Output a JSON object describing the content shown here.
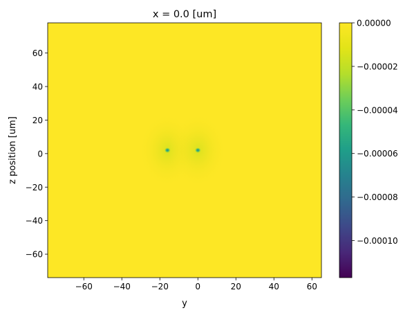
{
  "chart_data": {
    "type": "heatmap",
    "title": "x = 0.0 [um]",
    "xlabel": "y",
    "ylabel": "z position [um]",
    "xlim": [
      -79,
      65
    ],
    "ylim": [
      -74,
      78
    ],
    "xticks": [
      -60,
      -40,
      -20,
      0,
      20,
      40,
      60
    ],
    "yticks": [
      -60,
      -40,
      -20,
      0,
      20,
      40,
      60
    ],
    "colormap": "viridis",
    "colorbar": {
      "vmin": -0.000117,
      "vmax": 0.0,
      "ticks": [
        "0.00000",
        "−0.00002",
        "−0.00004",
        "−0.00006",
        "−0.00008",
        "−0.00010"
      ],
      "tick_values": [
        0.0,
        -2e-05,
        -4e-05,
        -6e-05,
        -8e-05,
        -0.0001
      ]
    },
    "background_value": 0.0,
    "features": [
      {
        "y": -16,
        "z": 2,
        "value": -6.5e-05
      },
      {
        "y": 0,
        "z": 2,
        "value": -6e-05
      }
    ],
    "grid": false
  }
}
